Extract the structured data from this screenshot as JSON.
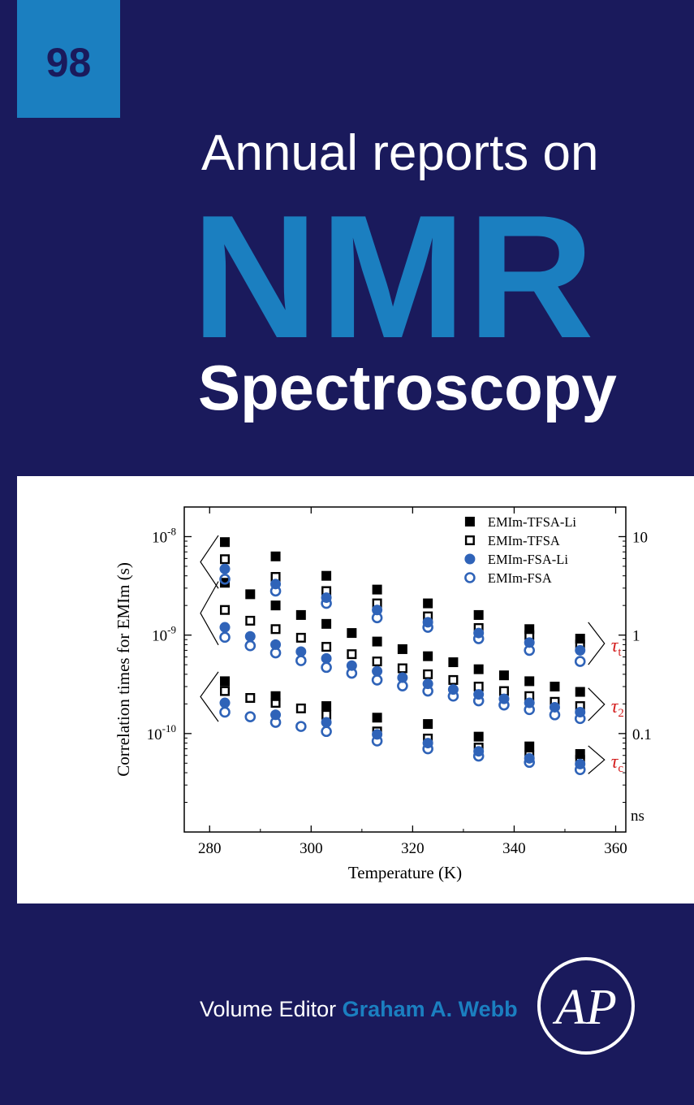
{
  "volume_number": "98",
  "series_title_line1": "Annual reports on",
  "series_title_line2": "NMR",
  "series_title_line3": "Spectroscopy",
  "editor_label": "Volume Editor",
  "editor_name": "Graham A. Webb",
  "publisher_logo_text": "AP",
  "colors": {
    "background": "#1a1a5c",
    "accent": "#1b7fc0",
    "square": "#000000",
    "circle": "#2f63b8",
    "annotation": "#d42020"
  },
  "chart_data": {
    "type": "scatter",
    "xlabel": "Temperature (K)",
    "ylabel": "Correlation times for EMIm (s)",
    "xlim": [
      275,
      362
    ],
    "ylim": [
      1e-11,
      2e-08
    ],
    "y_scale": "log",
    "x_ticks": [
      "280",
      "300",
      "320",
      "340",
      "360"
    ],
    "x_tick_values": [
      280,
      300,
      320,
      340,
      360
    ],
    "y_ticks": [
      {
        "value": 1e-08,
        "base": "10",
        "exp": "-8"
      },
      {
        "value": 1e-09,
        "base": "10",
        "exp": "-9"
      },
      {
        "value": 1e-10,
        "base": "10",
        "exp": "-10"
      }
    ],
    "y2_ticks": [
      {
        "value": 1e-08,
        "label": "10"
      },
      {
        "value": 1e-09,
        "label": "1"
      },
      {
        "value": 1e-10,
        "label": "0.1"
      }
    ],
    "y2_unit": "ns",
    "legend_position": "top-right",
    "annotations": [
      {
        "symbol": "τ",
        "sub": "t",
        "y": 9.5e-10
      },
      {
        "symbol": "τ",
        "sub": "2",
        "y": 2e-10
      },
      {
        "symbol": "τ",
        "sub": "c",
        "y": 5.3e-11
      }
    ],
    "series": [
      {
        "name": "EMIm-TFSA-Li",
        "marker": "filled-square",
        "groups": {
          "tau_t": {
            "x": [
              283,
              293,
              303,
              313,
              323,
              333,
              343,
              353
            ],
            "y": [
              8.8e-09,
              6.3e-09,
              4e-09,
              2.9e-09,
              2.1e-09,
              1.6e-09,
              1.15e-09,
              9.2e-10
            ]
          },
          "tau_2": {
            "x": [
              283,
              288,
              293,
              298,
              303,
              308,
              313,
              318,
              323,
              328,
              333,
              338,
              343,
              348,
              353
            ],
            "y": [
              3.4e-09,
              2.6e-09,
              2e-09,
              1.6e-09,
              1.3e-09,
              1.05e-09,
              8.6e-10,
              7.2e-10,
              6.1e-10,
              5.3e-10,
              4.5e-10,
              3.9e-10,
              3.4e-10,
              3e-10,
              2.65e-10
            ]
          },
          "tau_c": {
            "x": [
              283,
              293,
              303,
              313,
              323,
              333,
              343,
              353
            ],
            "y": [
              3.4e-10,
              2.4e-10,
              1.9e-10,
              1.45e-10,
              1.25e-10,
              9.3e-11,
              7.4e-11,
              6.2e-11
            ]
          }
        }
      },
      {
        "name": "EMIm-TFSA",
        "marker": "open-square",
        "groups": {
          "tau_t": {
            "x": [
              283,
              293,
              303,
              313,
              323,
              333,
              343,
              353
            ],
            "y": [
              5.9e-09,
              3.9e-09,
              2.8e-09,
              2.1e-09,
              1.55e-09,
              1.18e-09,
              1e-09,
              8e-10
            ]
          },
          "tau_2": {
            "x": [
              283,
              288,
              293,
              298,
              303,
              308,
              313,
              318,
              323,
              328,
              333,
              338,
              343,
              348,
              353
            ],
            "y": [
              1.8e-09,
              1.4e-09,
              1.15e-09,
              9.4e-10,
              7.6e-10,
              6.4e-10,
              5.4e-10,
              4.6e-10,
              4e-10,
              3.5e-10,
              3e-10,
              2.7e-10,
              2.4e-10,
              2.1e-10,
              1.9e-10
            ]
          },
          "tau_c": {
            "x": [
              283,
              288,
              293,
              298,
              303,
              313,
              323,
              333,
              343,
              353
            ],
            "y": [
              2.7e-10,
              2.3e-10,
              2.05e-10,
              1.8e-10,
              1.55e-10,
              1.05e-10,
              8.9e-11,
              7.2e-11,
              6e-11,
              5.4e-11
            ]
          }
        }
      },
      {
        "name": "EMIm-FSA-Li",
        "marker": "filled-circle",
        "groups": {
          "tau_t": {
            "x": [
              283,
              293,
              303,
              313,
              323,
              333,
              343,
              353
            ],
            "y": [
              4.7e-09,
              3.3e-09,
              2.4e-09,
              1.8e-09,
              1.35e-09,
              1.05e-09,
              8.4e-10,
              7e-10
            ]
          },
          "tau_2": {
            "x": [
              283,
              288,
              293,
              298,
              303,
              308,
              313,
              318,
              323,
              328,
              333,
              338,
              343,
              348,
              353
            ],
            "y": [
              1.2e-09,
              9.7e-10,
              8e-10,
              6.8e-10,
              5.8e-10,
              4.9e-10,
              4.3e-10,
              3.7e-10,
              3.2e-10,
              2.8e-10,
              2.5e-10,
              2.25e-10,
              2.05e-10,
              1.85e-10,
              1.65e-10
            ]
          },
          "tau_c": {
            "x": [
              283,
              293,
              303,
              313,
              323,
              333,
              343,
              353
            ],
            "y": [
              2.05e-10,
              1.55e-10,
              1.3e-10,
              9.8e-11,
              8e-11,
              6.6e-11,
              5.6e-11,
              4.9e-11
            ]
          }
        }
      },
      {
        "name": "EMIm-FSA",
        "marker": "open-circle",
        "groups": {
          "tau_t": {
            "x": [
              283,
              293,
              303,
              313,
              323,
              333,
              343,
              353
            ],
            "y": [
              3.7e-09,
              2.8e-09,
              2.1e-09,
              1.5e-09,
              1.2e-09,
              9.2e-10,
              7e-10,
              5.4e-10
            ]
          },
          "tau_2": {
            "x": [
              283,
              288,
              293,
              298,
              303,
              308,
              313,
              318,
              323,
              328,
              333,
              338,
              343,
              348,
              353
            ],
            "y": [
              9.5e-10,
              7.8e-10,
              6.6e-10,
              5.5e-10,
              4.7e-10,
              4.1e-10,
              3.5e-10,
              3.05e-10,
              2.7e-10,
              2.4e-10,
              2.15e-10,
              1.95e-10,
              1.75e-10,
              1.55e-10,
              1.42e-10
            ]
          },
          "tau_c": {
            "x": [
              283,
              288,
              293,
              298,
              303,
              313,
              323,
              333,
              343,
              353
            ],
            "y": [
              1.65e-10,
              1.48e-10,
              1.3e-10,
              1.18e-10,
              1.05e-10,
              8.4e-11,
              7e-11,
              5.9e-11,
              5.1e-11,
              4.3e-11
            ]
          }
        }
      }
    ]
  }
}
